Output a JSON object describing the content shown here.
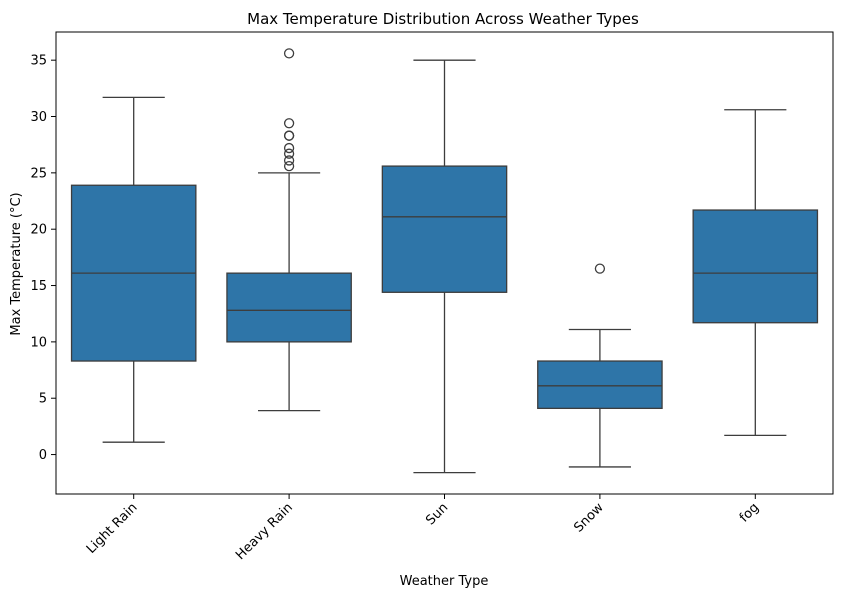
{
  "chart_data": {
    "type": "box",
    "title": "Max Temperature Distribution Across Weather Types",
    "xlabel": "Weather Type",
    "ylabel": "Max Temperature (°C)",
    "ylim": [
      -3.5,
      37.5
    ],
    "yticks": [
      0,
      5,
      10,
      15,
      20,
      25,
      30,
      35
    ],
    "categories": [
      "Light Rain",
      "Heavy Rain",
      "Sun",
      "Snow",
      "fog"
    ],
    "boxes": [
      {
        "category": "Light Rain",
        "whisker_low": 1.1,
        "q1": 8.3,
        "median": 16.1,
        "q3": 23.9,
        "whisker_high": 31.7,
        "outliers": []
      },
      {
        "category": "Heavy Rain",
        "whisker_low": 3.9,
        "q1": 10.0,
        "median": 12.8,
        "q3": 16.1,
        "whisker_high": 25.0,
        "outliers": [
          25.6,
          26.1,
          26.7,
          27.2,
          28.3,
          28.3,
          29.4,
          35.6
        ]
      },
      {
        "category": "Sun",
        "whisker_low": -1.6,
        "q1": 14.4,
        "median": 21.1,
        "q3": 25.6,
        "whisker_high": 35.0,
        "outliers": []
      },
      {
        "category": "Snow",
        "whisker_low": -1.1,
        "q1": 4.1,
        "median": 6.1,
        "q3": 8.3,
        "whisker_high": 11.1,
        "outliers": [
          16.5
        ]
      },
      {
        "category": "fog",
        "whisker_low": 1.7,
        "q1": 11.7,
        "median": 16.1,
        "q3": 21.7,
        "whisker_high": 30.6,
        "outliers": []
      }
    ],
    "colors": {
      "box_fill": "#2e75a8",
      "line": "#3d3d3d",
      "axis": "#000000",
      "background": "#ffffff"
    },
    "grid": false,
    "xtick_rotation_deg": 45
  }
}
